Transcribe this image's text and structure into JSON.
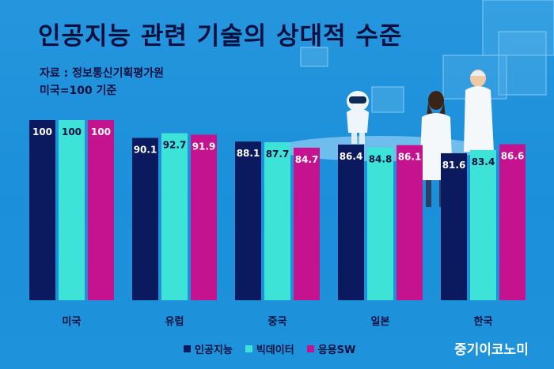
{
  "title": "인공지능 관련 기술의 상대적 수준",
  "source": "자료 : 정보통신기획평가원",
  "basis": "미국=100 기준",
  "brand": "중기이코노미",
  "colors": {
    "background": "#1f93db",
    "ai": "#0b1a5e",
    "bigdata": "#3de3d6",
    "applied_sw": "#c5128f",
    "text_dark": "#0b1040"
  },
  "chart_data": {
    "type": "bar",
    "title": "인공지능 관련 기술의 상대적 수준",
    "categories": [
      "미국",
      "유럽",
      "중국",
      "일본",
      "한국"
    ],
    "series": [
      {
        "name": "인공지능",
        "values": [
          100,
          90.1,
          88.1,
          86.4,
          81.6
        ],
        "labels": [
          "100",
          "90.1",
          "88.1",
          "86.4",
          "81.6"
        ]
      },
      {
        "name": "빅데이터",
        "values": [
          100,
          92.7,
          87.7,
          84.8,
          83.4
        ],
        "labels": [
          "100",
          "92.7",
          "87.7",
          "84.8",
          "83.4"
        ]
      },
      {
        "name": "응용SW",
        "values": [
          100,
          91.9,
          84.7,
          86.1,
          86.6
        ],
        "labels": [
          "100",
          "91.9",
          "84.7",
          "86.1",
          "86.6"
        ]
      }
    ],
    "grid": false,
    "legend_position": "bottom"
  }
}
